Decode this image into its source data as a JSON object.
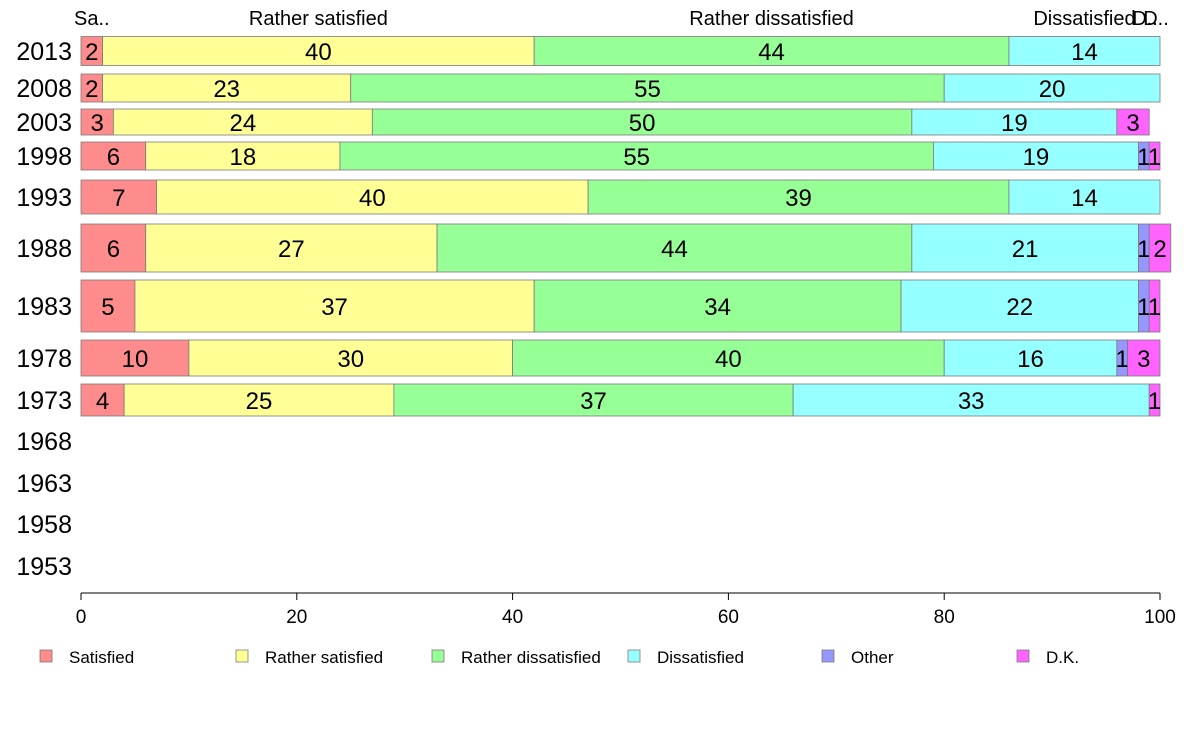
{
  "chart_data": {
    "type": "bar",
    "orientation": "horizontal",
    "stacked": true,
    "xlim": [
      0,
      100
    ],
    "xticks": [
      0,
      20,
      40,
      60,
      80,
      100
    ],
    "categories": [
      "2013",
      "2008",
      "2003",
      "1998",
      "1993",
      "1988",
      "1983",
      "1978",
      "1973",
      "1968",
      "1963",
      "1958",
      "1953"
    ],
    "series": [
      {
        "name": "Satisfied",
        "color": "#ff8c8c",
        "values": [
          2,
          2,
          3,
          6,
          7,
          6,
          5,
          10,
          4,
          null,
          null,
          null,
          null
        ]
      },
      {
        "name": "Rather satisfied",
        "color": "#ffff96",
        "values": [
          40,
          23,
          24,
          18,
          40,
          27,
          37,
          30,
          25,
          null,
          null,
          null,
          null
        ]
      },
      {
        "name": "Rather dissatisfied",
        "color": "#96ff96",
        "values": [
          44,
          55,
          50,
          55,
          39,
          44,
          34,
          40,
          37,
          null,
          null,
          null,
          null
        ]
      },
      {
        "name": "Dissatisfied",
        "color": "#96ffff",
        "values": [
          14,
          20,
          19,
          19,
          14,
          21,
          22,
          16,
          33,
          null,
          null,
          null,
          null
        ]
      },
      {
        "name": "Other",
        "color": "#9696ff",
        "values": [
          0,
          0,
          0,
          1,
          0,
          1,
          1,
          1,
          0,
          null,
          null,
          null,
          null
        ]
      },
      {
        "name": "D.K.",
        "color": "#ff64ff",
        "values": [
          0,
          0,
          3,
          1,
          0,
          2,
          1,
          3,
          1,
          null,
          null,
          null,
          null
        ]
      }
    ],
    "top_labels": [
      "Sa..",
      "Rather satisfied",
      "Rather dissatisfied",
      "Dissatisfied",
      "D..",
      "D.."
    ],
    "legend_position": "bottom",
    "grid": false
  }
}
